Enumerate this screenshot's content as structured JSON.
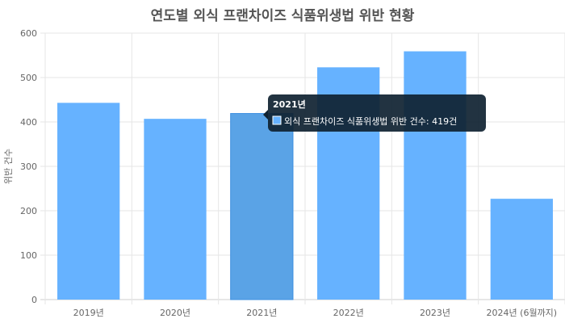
{
  "chart_data": {
    "type": "bar",
    "title": "연도별 외식 프랜차이즈 식품위생법 위반 현황",
    "ylabel": "위반 건수",
    "xlabel": "",
    "categories": [
      "2019년",
      "2020년",
      "2021년",
      "2022년",
      "2023년",
      "2024년 (6월까지)"
    ],
    "series": [
      {
        "name": "외식 프랜차이즈 식품위생법 위반 건수",
        "values": [
          443,
          407,
          419,
          523,
          559,
          227
        ]
      }
    ],
    "ylim": [
      0,
      600
    ],
    "yticks": [
      0,
      100,
      200,
      300,
      400,
      500,
      600
    ],
    "grid": true,
    "colors": {
      "bar": "#66b2ff",
      "bar_hover": "#5aa3e6",
      "bar_border": "#3d8fe0",
      "tooltip_bg": "#0f2231"
    },
    "tooltip": {
      "category_index": 2,
      "title": "2021년",
      "label": "외식 프랜차이즈 식품위생법 위반 건수: 419건"
    }
  }
}
